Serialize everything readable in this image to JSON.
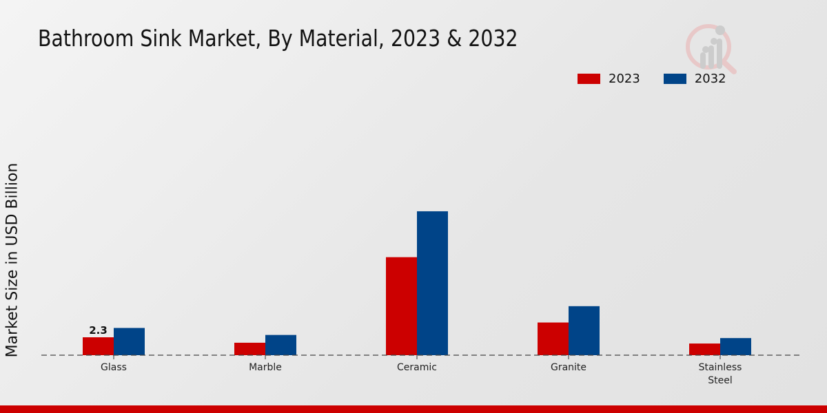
{
  "chart_data": {
    "type": "bar",
    "title": "Bathroom Sink Market, By Material, 2023 & 2032",
    "xlabel": "",
    "ylabel": "Market Size in USD Billion",
    "categories": [
      "Glass",
      "Marble",
      "Ceramic",
      "Granite",
      "Stainless Steel"
    ],
    "series": [
      {
        "name": "2023",
        "color": "#cc0000",
        "values": [
          2.3,
          1.6,
          12.6,
          4.2,
          1.5
        ]
      },
      {
        "name": "2032",
        "color": "#004488",
        "values": [
          3.5,
          2.6,
          18.5,
          6.3,
          2.2
        ]
      }
    ],
    "data_labels": [
      {
        "series": "2023",
        "category": "Glass",
        "text": "2.3"
      }
    ],
    "ylim": [
      0,
      20
    ],
    "grid": false,
    "legend_position": "top-right"
  }
}
